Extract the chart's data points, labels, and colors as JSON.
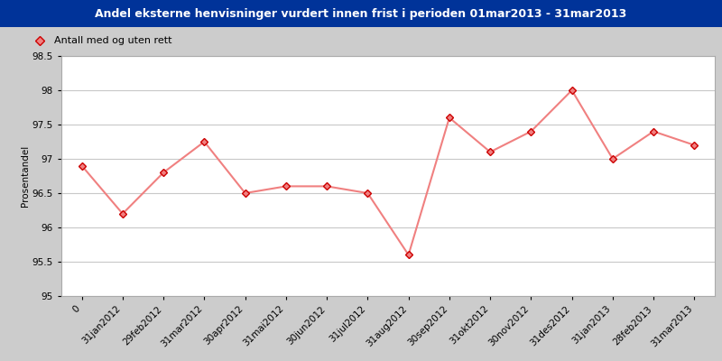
{
  "title": "Andel eksterne henvisninger vurdert innen frist i perioden 01mar2013 - 31mar2013",
  "ylabel": "Prosentandel",
  "legend_label": "Antall med og uten rett",
  "x_labels": [
    "0",
    "31jan2012",
    "29feb2012",
    "31mar2012",
    "30apr2012",
    "31mai2012",
    "30jun2012",
    "31jul2012",
    "31aug2012",
    "30sep2012",
    "31okt2012",
    "30nov2012",
    "31des2012",
    "31jan2013",
    "28feb2013",
    "31mar2013"
  ],
  "y_values": [
    96.9,
    96.2,
    96.8,
    97.25,
    96.5,
    96.6,
    96.6,
    96.5,
    95.6,
    97.6,
    97.1,
    97.4,
    98.0,
    97.0,
    97.4,
    97.2
  ],
  "ylim": [
    95.0,
    98.5
  ],
  "yticks": [
    95,
    95.5,
    96,
    96.5,
    97,
    97.5,
    98,
    98.5
  ],
  "line_color": "#F08080",
  "marker_color": "#CC0000",
  "marker_face": "#F08080",
  "title_bg_color": "#003399",
  "title_text_color": "#FFFFFF",
  "plot_bg_color": "#FFFFFF",
  "outer_bg_color": "#CCCCCC",
  "grid_color": "#C8C8C8",
  "title_fontsize": 9,
  "axis_fontsize": 7.5,
  "legend_fontsize": 8
}
